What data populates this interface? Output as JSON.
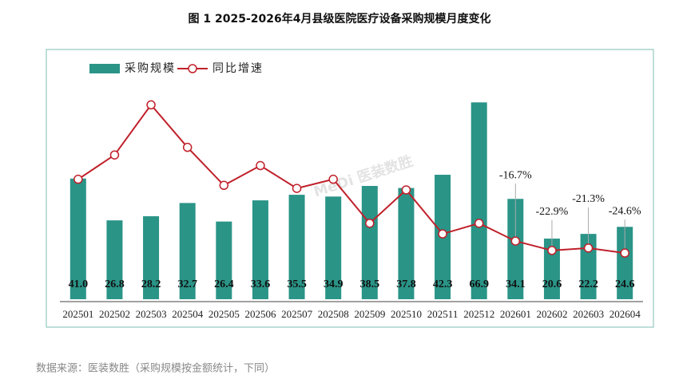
{
  "chart_data": {
    "type": "bar_line",
    "title": "图 1 2025-2026年4月县级医院医疗设备采购规模月度变化",
    "source": "数据来源：医装数胜（采购规模按金额统计，下同）",
    "watermark": "MeDi 医装数胜",
    "categories": [
      "202501",
      "202502",
      "202503",
      "202504",
      "202505",
      "202506",
      "202507",
      "202508",
      "202509",
      "202510",
      "202511",
      "202512",
      "202601",
      "202602",
      "202603",
      "202604"
    ],
    "series": [
      {
        "name": "采购规模",
        "color": "#2a9487",
        "type": "bar",
        "values": [
          41.0,
          26.8,
          28.2,
          32.7,
          26.4,
          33.6,
          35.5,
          34.9,
          38.5,
          37.8,
          42.3,
          66.9,
          34.1,
          20.6,
          22.2,
          24.6
        ],
        "value_labels": [
          "41.0",
          "26.8",
          "28.2",
          "32.7",
          "26.4",
          "33.6",
          "35.5",
          "34.9",
          "38.5",
          "37.8",
          "42.3",
          "66.9",
          "34.1",
          "20.6",
          "22.2",
          "24.6"
        ]
      },
      {
        "name": "同比增速",
        "color": "#c0202a",
        "type": "line",
        "axis": "y2",
        "values": [
          24,
          40,
          73,
          45,
          20,
          33,
          18,
          24,
          -5,
          17,
          -12,
          -5,
          -16.7,
          -22.9,
          -21.3,
          -24.6
        ],
        "value_labels": [
          null,
          null,
          null,
          null,
          null,
          null,
          null,
          null,
          null,
          null,
          null,
          null,
          "-16.7%",
          "-22.9%",
          "-21.3%",
          "-24.6%"
        ]
      }
    ],
    "ylim": [
      0,
      80
    ],
    "y2lim": [
      -55,
      100
    ],
    "legend": "top-left"
  }
}
